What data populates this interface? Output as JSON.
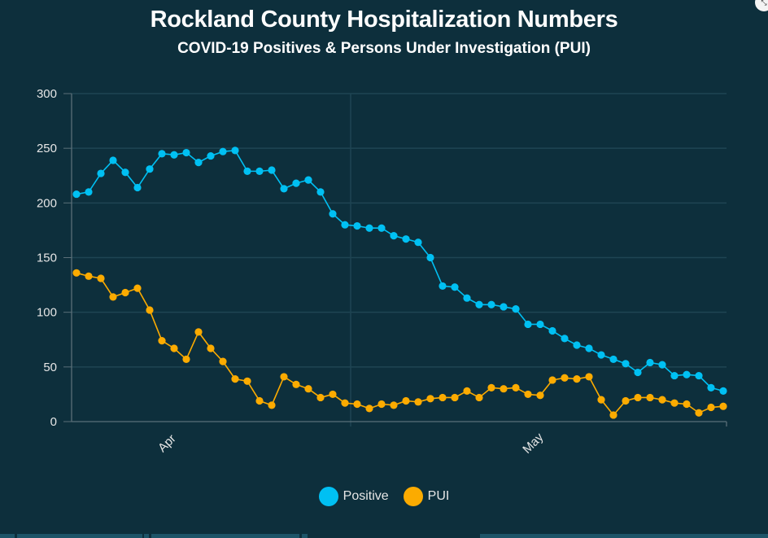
{
  "title": "Rockland County Hospitalization Numbers",
  "subtitle": "COVID-19 Positives & Persons Under Investigation (PUI)",
  "corner_icon": "expand-icon",
  "chart_data": {
    "type": "line",
    "title": "Rockland County Hospitalization Numbers",
    "subtitle": "COVID-19 Positives & Persons Under Investigation (PUI)",
    "xlabel": "",
    "ylabel": "",
    "ylim": [
      0,
      300
    ],
    "yticks": [
      "0",
      "50",
      "100",
      "150",
      "200",
      "250",
      "300"
    ],
    "xtick_labels": [
      {
        "label": "Apr",
        "index": 7.5
      },
      {
        "label": "May",
        "index": 37.5
      }
    ],
    "grid": true,
    "legend": "bottom-center",
    "series": [
      {
        "name": "Positive",
        "color": "#00c0f3",
        "values": [
          208,
          210,
          227,
          239,
          228,
          214,
          231,
          245,
          244,
          246,
          237,
          243,
          247,
          248,
          229,
          229,
          230,
          213,
          218,
          221,
          210,
          190,
          180,
          179,
          177,
          177,
          170,
          167,
          164,
          150,
          124,
          123,
          113,
          107,
          107,
          105,
          103,
          89,
          89,
          83,
          76,
          70,
          67,
          61,
          57,
          53,
          45,
          54,
          52,
          42,
          43,
          42,
          31,
          28
        ]
      },
      {
        "name": "PUI",
        "color": "#fcab00",
        "values": [
          136,
          133,
          131,
          114,
          118,
          122,
          102,
          74,
          67,
          57,
          82,
          67,
          55,
          39,
          37,
          19,
          15,
          41,
          34,
          30,
          22,
          25,
          17,
          16,
          12,
          16,
          15,
          19,
          18,
          21,
          22,
          22,
          28,
          22,
          31,
          30,
          31,
          25,
          24,
          38,
          40,
          39,
          41,
          20,
          6,
          19,
          22,
          22,
          20,
          17,
          16,
          8,
          13,
          14
        ]
      }
    ]
  }
}
